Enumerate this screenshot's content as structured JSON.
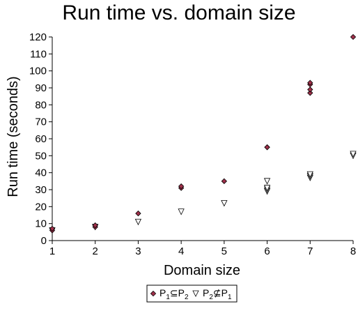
{
  "chart_data": {
    "type": "scatter",
    "title": "Run time vs. domain size",
    "xlabel": "Domain size",
    "ylabel": "Run time (seconds)",
    "xlim": [
      1,
      8
    ],
    "ylim": [
      0,
      120
    ],
    "xticks": [
      1,
      2,
      3,
      4,
      5,
      6,
      7,
      8
    ],
    "yticks": [
      0,
      10,
      20,
      30,
      40,
      50,
      60,
      70,
      80,
      90,
      100,
      110,
      120
    ],
    "grid": false,
    "legend_position": "bottom-center",
    "series": [
      {
        "name_parts": [
          "P",
          "1",
          "⊆",
          "P",
          "2"
        ],
        "marker": "diamond",
        "color": "#a0304a",
        "points": [
          [
            1,
            6
          ],
          [
            1,
            7
          ],
          [
            2,
            8
          ],
          [
            2,
            9
          ],
          [
            3,
            16
          ],
          [
            4,
            31
          ],
          [
            4,
            32
          ],
          [
            5,
            35
          ],
          [
            6,
            55
          ],
          [
            6,
            55
          ],
          [
            7,
            87
          ],
          [
            7,
            89
          ],
          [
            7,
            92
          ],
          [
            7,
            93
          ],
          [
            8,
            120
          ]
        ]
      },
      {
        "name_parts": [
          "P",
          "2",
          "⊈",
          "P",
          "1"
        ],
        "marker": "triangle-down",
        "color": "#ffffff",
        "points": [
          [
            1,
            6
          ],
          [
            2,
            8
          ],
          [
            3,
            11
          ],
          [
            4,
            17
          ],
          [
            5,
            22
          ],
          [
            6,
            29
          ],
          [
            6,
            30
          ],
          [
            6,
            31
          ],
          [
            6,
            35
          ],
          [
            7,
            37
          ],
          [
            7,
            38
          ],
          [
            7,
            39
          ],
          [
            8,
            50
          ],
          [
            8,
            51
          ]
        ]
      }
    ]
  }
}
